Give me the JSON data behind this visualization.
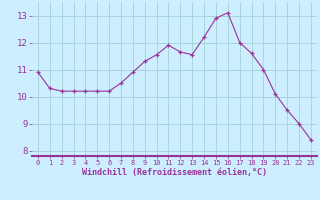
{
  "x": [
    0,
    1,
    2,
    3,
    4,
    5,
    6,
    7,
    8,
    9,
    10,
    11,
    12,
    13,
    14,
    15,
    16,
    17,
    18,
    19,
    20,
    21,
    22,
    23
  ],
  "y": [
    10.9,
    10.3,
    10.2,
    10.2,
    10.2,
    10.2,
    10.2,
    10.5,
    10.9,
    11.3,
    11.55,
    11.9,
    11.65,
    11.55,
    12.2,
    12.9,
    13.1,
    12.0,
    11.6,
    11.0,
    10.1,
    9.5,
    9.0,
    8.4
  ],
  "xlabel": "Windchill (Refroidissement éolien,°C)",
  "xlim": [
    -0.5,
    23.5
  ],
  "ylim": [
    7.8,
    13.5
  ],
  "yticks": [
    8,
    9,
    10,
    11,
    12,
    13
  ],
  "xticks": [
    0,
    1,
    2,
    3,
    4,
    5,
    6,
    7,
    8,
    9,
    10,
    11,
    12,
    13,
    14,
    15,
    16,
    17,
    18,
    19,
    20,
    21,
    22,
    23
  ],
  "line_color": "#993399",
  "bg_color": "#CCEEFF",
  "grid_color": "#99CCCC",
  "tick_label_color": "#993399",
  "xlabel_color": "#993399",
  "border_bottom_color": "#993399"
}
